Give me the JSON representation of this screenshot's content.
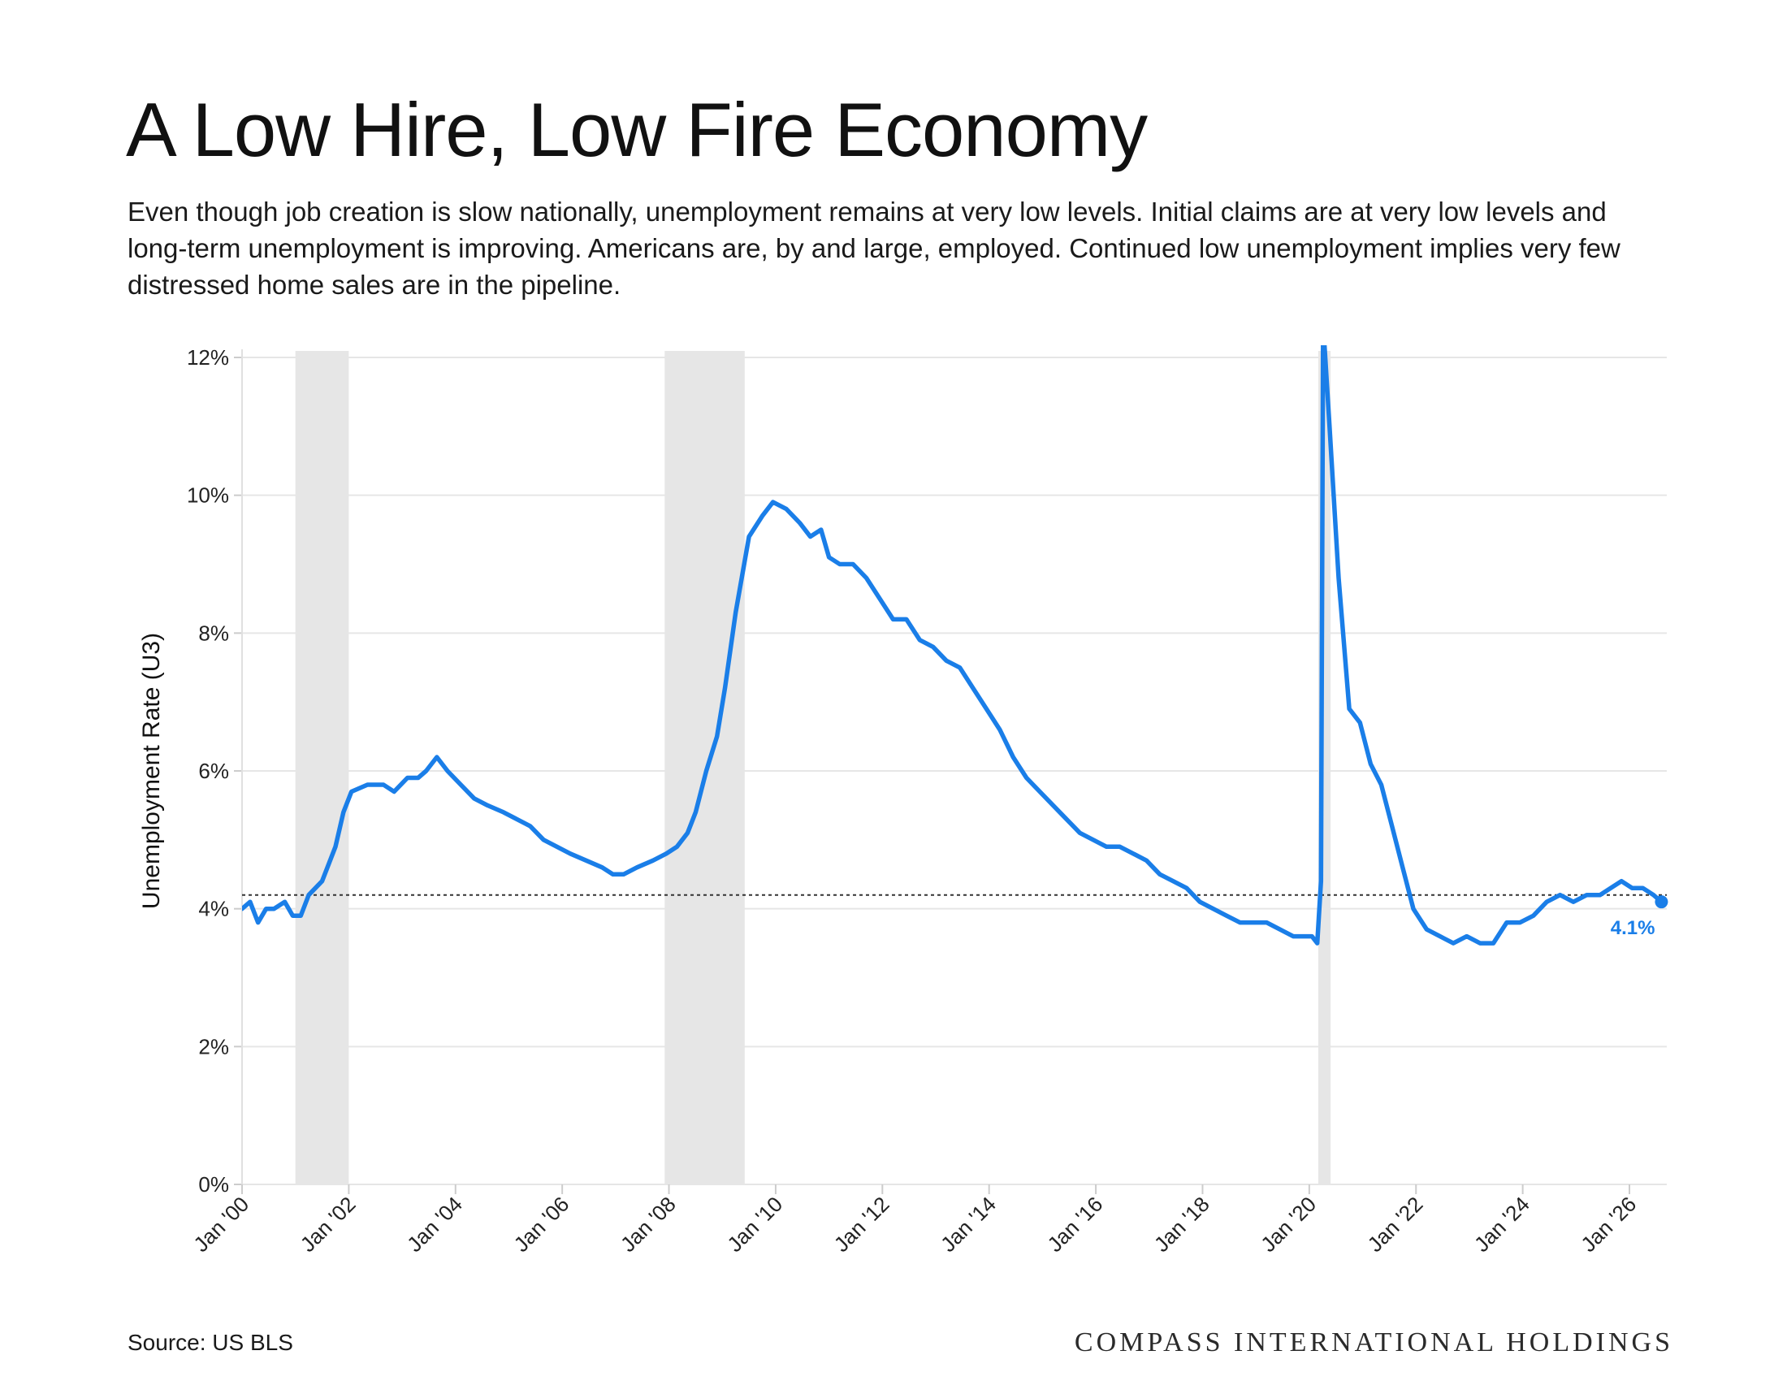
{
  "header": {
    "title": "A Low Hire, Low Fire Economy",
    "subtitle": "Even though job creation is slow nationally, unemployment remains at very low levels. Initial claims are at very low levels and long-term unemployment is improving. Americans are, by and large, employed. Continued low unemployment implies very few distressed home sales are in the pipeline."
  },
  "footer": {
    "source": "Source: US BLS",
    "brand": "COMPASS INTERNATIONAL HOLDINGS"
  },
  "colors": {
    "line": "#1a7ee8",
    "recession": "#e6e6e6",
    "grid": "#e6e6e6",
    "reference": "#333333"
  },
  "chart_data": {
    "type": "line",
    "ylabel": "Unemployment Rate (U3)",
    "ylim": [
      0,
      12
    ],
    "yticks": [
      0,
      2,
      4,
      6,
      8,
      10,
      12
    ],
    "ytick_labels": [
      "0%",
      "2%",
      "4%",
      "6%",
      "8%",
      "10%",
      "12%"
    ],
    "xlim": [
      2000.0,
      2026.7
    ],
    "xticks": [
      2000,
      2002,
      2004,
      2006,
      2008,
      2010,
      2012,
      2014,
      2016,
      2018,
      2020,
      2022,
      2024,
      2026
    ],
    "xtick_labels": [
      "Jan '00",
      "Jan '02",
      "Jan '04",
      "Jan '06",
      "Jan '08",
      "Jan '10",
      "Jan '12",
      "Jan '14",
      "Jan '16",
      "Jan '18",
      "Jan '20",
      "Jan '22",
      "Jan '24",
      "Jan '26"
    ],
    "grid": "horizontal",
    "reference_line": 4.2,
    "recessions": [
      [
        2001.0,
        2002.0
      ],
      [
        2007.92,
        2009.42
      ],
      [
        2020.17,
        2020.4
      ]
    ],
    "end_label": "4.1%",
    "series": [
      {
        "x": [
          2000.0,
          2000.15,
          2000.3,
          2000.45,
          2000.6,
          2000.8,
          2000.95,
          2001.1,
          2001.25,
          2001.5,
          2001.75,
          2001.9,
          2002.05,
          2002.35,
          2002.65,
          2002.85,
          2003.1,
          2003.3,
          2003.45,
          2003.65,
          2003.85,
          2004.1,
          2004.35,
          2004.6,
          2004.9,
          2005.15,
          2005.4,
          2005.65,
          2005.9,
          2006.15,
          2006.45,
          2006.75,
          2006.95,
          2007.15,
          2007.4,
          2007.7,
          2007.95,
          2008.15,
          2008.35,
          2008.5,
          2008.7,
          2008.9,
          2009.05,
          2009.25,
          2009.5,
          2009.75,
          2009.95,
          2010.2,
          2010.45,
          2010.65,
          2010.85,
          2011.0,
          2011.2,
          2011.45,
          2011.7,
          2011.95,
          2012.2,
          2012.45,
          2012.7,
          2012.95,
          2013.2,
          2013.45,
          2013.7,
          2013.95,
          2014.2,
          2014.45,
          2014.7,
          2014.95,
          2015.2,
          2015.45,
          2015.7,
          2015.95,
          2016.2,
          2016.45,
          2016.7,
          2016.95,
          2017.2,
          2017.45,
          2017.7,
          2017.95,
          2018.2,
          2018.45,
          2018.7,
          2018.95,
          2019.2,
          2019.45,
          2019.7,
          2019.9,
          2020.05,
          2020.15,
          2020.22,
          2020.26,
          2020.38,
          2020.55,
          2020.75,
          2020.95,
          2021.15,
          2021.35,
          2021.55,
          2021.75,
          2021.95,
          2022.2,
          2022.45,
          2022.7,
          2022.95,
          2023.2,
          2023.45,
          2023.7,
          2023.95,
          2024.2,
          2024.45,
          2024.7,
          2024.95,
          2025.2,
          2025.45,
          2025.65,
          2025.85,
          2026.05,
          2026.25,
          2026.45,
          2026.6
        ],
        "y": [
          4.0,
          4.1,
          3.8,
          4.0,
          4.0,
          4.1,
          3.9,
          3.9,
          4.2,
          4.4,
          4.9,
          5.4,
          5.7,
          5.8,
          5.8,
          5.7,
          5.9,
          5.9,
          6.0,
          6.2,
          6.0,
          5.8,
          5.6,
          5.5,
          5.4,
          5.3,
          5.2,
          5.0,
          4.9,
          4.8,
          4.7,
          4.6,
          4.5,
          4.5,
          4.6,
          4.7,
          4.8,
          4.9,
          5.1,
          5.4,
          6.0,
          6.5,
          7.2,
          8.3,
          9.4,
          9.7,
          9.9,
          9.8,
          9.6,
          9.4,
          9.5,
          9.1,
          9.0,
          9.0,
          8.8,
          8.5,
          8.2,
          8.2,
          7.9,
          7.8,
          7.6,
          7.5,
          7.2,
          6.9,
          6.6,
          6.2,
          5.9,
          5.7,
          5.5,
          5.3,
          5.1,
          5.0,
          4.9,
          4.9,
          4.8,
          4.7,
          4.5,
          4.4,
          4.3,
          4.1,
          4.0,
          3.9,
          3.8,
          3.8,
          3.8,
          3.7,
          3.6,
          3.6,
          3.6,
          3.5,
          4.4,
          12.5,
          11.0,
          8.8,
          6.9,
          6.7,
          6.1,
          5.8,
          5.2,
          4.6,
          4.0,
          3.7,
          3.6,
          3.5,
          3.6,
          3.5,
          3.5,
          3.8,
          3.8,
          3.9,
          4.1,
          4.2,
          4.1,
          4.2,
          4.2,
          4.3,
          4.4,
          4.3,
          4.3,
          4.2,
          4.1
        ]
      }
    ]
  }
}
